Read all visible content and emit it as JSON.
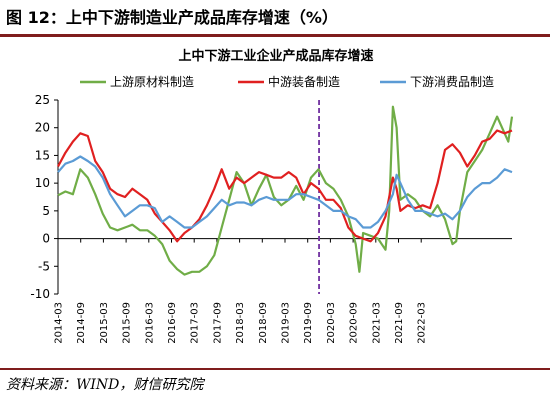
{
  "figure_title": "图 12：上中下游制造业产成品库存增速（%）",
  "source_note": "资料来源：WIND，财信研究院",
  "colors": {
    "upstream": "#70ad47",
    "midstream": "#e02020",
    "downstream": "#5b9bd5",
    "marker": "#7030a0",
    "rule": "#7f1d1d"
  },
  "chart_data": {
    "type": "line",
    "title": "上中下游工业企业产成品库存增速",
    "xlabel": "",
    "ylabel": "",
    "ylim": [
      -10,
      25
    ],
    "yticks": [
      -10,
      -5,
      0,
      5,
      10,
      15,
      20,
      25
    ],
    "xticks": [
      "2014-03",
      "2014-09",
      "2015-03",
      "2015-09",
      "2016-03",
      "2016-09",
      "2017-03",
      "2017-09",
      "2018-03",
      "2018-09",
      "2019-03",
      "2019-09",
      "2020-03",
      "2020-09",
      "2021-03",
      "2021-09",
      "2022-03"
    ],
    "grid": false,
    "legend_position": "top",
    "vertical_marker": "2019-12",
    "series": [
      {
        "name": "上游原材料制造",
        "values": [
          [
            0,
            7.8
          ],
          [
            2,
            8.5
          ],
          [
            4,
            8
          ],
          [
            6,
            12.5
          ],
          [
            8,
            11
          ],
          [
            10,
            8
          ],
          [
            12,
            4.5
          ],
          [
            14,
            2
          ],
          [
            16,
            1.5
          ],
          [
            18,
            2
          ],
          [
            20,
            2.5
          ],
          [
            22,
            1.5
          ],
          [
            24,
            1.5
          ],
          [
            26,
            0.5
          ],
          [
            28,
            -1
          ],
          [
            30,
            -4
          ],
          [
            32,
            -5.5
          ],
          [
            34,
            -6.5
          ],
          [
            36,
            -6
          ],
          [
            38,
            -6
          ],
          [
            40,
            -5
          ],
          [
            42,
            -3
          ],
          [
            44,
            2
          ],
          [
            46,
            7
          ],
          [
            48,
            12
          ],
          [
            50,
            10
          ],
          [
            52,
            6
          ],
          [
            54,
            9
          ],
          [
            56,
            11.5
          ],
          [
            58,
            7.5
          ],
          [
            60,
            6
          ],
          [
            62,
            7
          ],
          [
            64,
            9.5
          ],
          [
            66,
            7
          ],
          [
            68,
            11
          ],
          [
            70,
            12.5
          ],
          [
            72,
            10
          ],
          [
            74,
            9
          ],
          [
            76,
            7
          ],
          [
            78,
            4
          ],
          [
            80,
            -1
          ],
          [
            81,
            -6
          ],
          [
            82,
            1
          ],
          [
            84,
            0.5
          ],
          [
            86,
            0
          ],
          [
            88,
            -2
          ],
          [
            89,
            5
          ],
          [
            90,
            23.8
          ],
          [
            91,
            20
          ],
          [
            92,
            7
          ],
          [
            94,
            8
          ],
          [
            96,
            7
          ],
          [
            98,
            5
          ],
          [
            100,
            4
          ],
          [
            102,
            6
          ],
          [
            104,
            3.5
          ],
          [
            106,
            -1
          ],
          [
            107,
            -0.5
          ],
          [
            108,
            5
          ],
          [
            110,
            12
          ],
          [
            112,
            14
          ],
          [
            114,
            16
          ],
          [
            116,
            19
          ],
          [
            118,
            22
          ],
          [
            120,
            19
          ],
          [
            121,
            17.5
          ],
          [
            122,
            22
          ]
        ]
      },
      {
        "name": "中游装备制造",
        "values": [
          [
            0,
            13
          ],
          [
            2,
            15.5
          ],
          [
            4,
            17.5
          ],
          [
            6,
            19
          ],
          [
            8,
            18.5
          ],
          [
            10,
            14
          ],
          [
            12,
            12
          ],
          [
            14,
            9
          ],
          [
            16,
            8
          ],
          [
            18,
            7.5
          ],
          [
            20,
            9
          ],
          [
            22,
            8
          ],
          [
            24,
            7
          ],
          [
            26,
            4.5
          ],
          [
            28,
            3
          ],
          [
            30,
            1.5
          ],
          [
            32,
            -0.5
          ],
          [
            34,
            1
          ],
          [
            36,
            2
          ],
          [
            38,
            3.5
          ],
          [
            40,
            6
          ],
          [
            42,
            9
          ],
          [
            44,
            12.5
          ],
          [
            46,
            9
          ],
          [
            48,
            11
          ],
          [
            50,
            10
          ],
          [
            52,
            11
          ],
          [
            54,
            12
          ],
          [
            56,
            11.5
          ],
          [
            58,
            11
          ],
          [
            60,
            11
          ],
          [
            62,
            12
          ],
          [
            64,
            11
          ],
          [
            66,
            8
          ],
          [
            68,
            10
          ],
          [
            70,
            9
          ],
          [
            72,
            7
          ],
          [
            74,
            7
          ],
          [
            76,
            5.5
          ],
          [
            78,
            2
          ],
          [
            80,
            0.5
          ],
          [
            82,
            0
          ],
          [
            84,
            -0.5
          ],
          [
            86,
            1
          ],
          [
            88,
            4
          ],
          [
            90,
            11
          ],
          [
            91,
            9
          ],
          [
            92,
            5
          ],
          [
            94,
            6
          ],
          [
            96,
            5.5
          ],
          [
            98,
            6
          ],
          [
            100,
            5.5
          ],
          [
            102,
            10
          ],
          [
            104,
            16
          ],
          [
            106,
            17
          ],
          [
            108,
            15.5
          ],
          [
            110,
            13
          ],
          [
            112,
            15
          ],
          [
            114,
            17.5
          ],
          [
            116,
            18
          ],
          [
            118,
            19.5
          ],
          [
            120,
            19
          ],
          [
            122,
            19.5
          ]
        ]
      },
      {
        "name": "下游消费品制造",
        "values": [
          [
            0,
            12
          ],
          [
            2,
            13.5
          ],
          [
            4,
            14
          ],
          [
            6,
            14.8
          ],
          [
            8,
            14
          ],
          [
            10,
            13
          ],
          [
            12,
            11
          ],
          [
            14,
            8
          ],
          [
            16,
            6
          ],
          [
            18,
            4
          ],
          [
            20,
            5
          ],
          [
            22,
            6
          ],
          [
            24,
            6
          ],
          [
            26,
            5.5
          ],
          [
            28,
            3
          ],
          [
            30,
            4
          ],
          [
            32,
            3
          ],
          [
            34,
            2
          ],
          [
            36,
            2
          ],
          [
            38,
            3
          ],
          [
            40,
            4
          ],
          [
            42,
            5.5
          ],
          [
            44,
            7
          ],
          [
            46,
            6
          ],
          [
            48,
            6.5
          ],
          [
            50,
            6.5
          ],
          [
            52,
            6
          ],
          [
            54,
            7
          ],
          [
            56,
            7.5
          ],
          [
            58,
            7
          ],
          [
            60,
            7
          ],
          [
            62,
            7
          ],
          [
            64,
            8
          ],
          [
            66,
            8
          ],
          [
            68,
            7.5
          ],
          [
            70,
            7
          ],
          [
            72,
            6
          ],
          [
            74,
            5
          ],
          [
            76,
            5
          ],
          [
            78,
            4
          ],
          [
            80,
            3.5
          ],
          [
            82,
            2
          ],
          [
            84,
            2
          ],
          [
            86,
            3
          ],
          [
            88,
            5
          ],
          [
            90,
            8
          ],
          [
            91,
            11.5
          ],
          [
            92,
            10
          ],
          [
            94,
            7
          ],
          [
            96,
            5
          ],
          [
            98,
            5
          ],
          [
            100,
            4.5
          ],
          [
            102,
            4
          ],
          [
            104,
            4.5
          ],
          [
            106,
            3.5
          ],
          [
            108,
            5
          ],
          [
            110,
            7.5
          ],
          [
            112,
            9
          ],
          [
            114,
            10
          ],
          [
            116,
            10
          ],
          [
            118,
            11
          ],
          [
            120,
            12.5
          ],
          [
            122,
            12
          ]
        ]
      }
    ]
  }
}
